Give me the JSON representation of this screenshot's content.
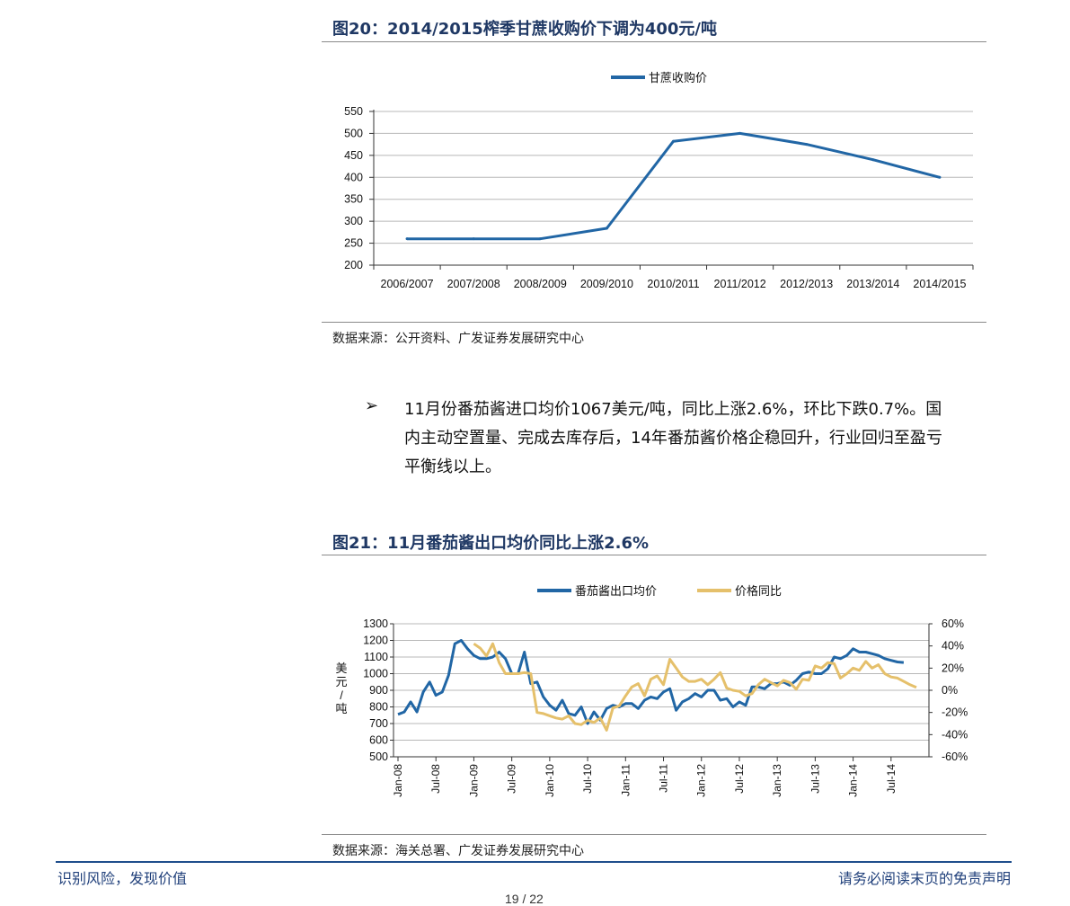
{
  "figure20": {
    "title": "图20：2014/2015榨季甘蔗收购价下调为400元/吨",
    "source": "数据来源：公开资料、广发证券发展研究中心",
    "chart_data": {
      "type": "line",
      "categories": [
        "2006/2007",
        "2007/2008",
        "2008/2009",
        "2009/2010",
        "2010/2011",
        "2011/2012",
        "2012/2013",
        "2013/2014",
        "2014/2015"
      ],
      "series": [
        {
          "name": "甘蔗收购价",
          "values": [
            260,
            260,
            260,
            284,
            482,
            500,
            475,
            440,
            400
          ],
          "color": "#2166a5"
        }
      ],
      "ylim": [
        200,
        550
      ],
      "yticks": [
        "200",
        "250",
        "300",
        "350",
        "400",
        "450",
        "500",
        "550"
      ],
      "legend_position": "top-center",
      "grid": true
    }
  },
  "bullet": {
    "marker": "➢",
    "lines": [
      "11月份番茄酱进口均价1067美元/吨，同比上涨2.6%，环比下跌0.7%。国",
      "内主动空置量、完成去库存后，14年番茄酱价格企稳回升，行业回归至盈亏",
      "平衡线以上。"
    ]
  },
  "figure21": {
    "title": "图21：11月番茄酱出口均价同比上涨2.6%",
    "source": "数据来源：海关总署、广发证券发展研究中心",
    "chart_data": {
      "type": "line",
      "x_labels": [
        "Jan-08",
        "Jul-08",
        "Jan-09",
        "Jul-09",
        "Jan-10",
        "Jul-10",
        "Jan-11",
        "Jul-11",
        "Jan-12",
        "Jul-12",
        "Jan-13",
        "Jul-13",
        "Jan-14",
        "Jul-14"
      ],
      "y_left_label": "美元/吨",
      "y_left_lim": [
        500,
        1300
      ],
      "y_left_ticks": [
        "500",
        "600",
        "700",
        "800",
        "900",
        "1000",
        "1100",
        "1200",
        "1300"
      ],
      "y_right_lim": [
        -0.6,
        0.6
      ],
      "y_right_ticks": [
        "-60%",
        "-40%",
        "-20%",
        "0%",
        "20%",
        "40%",
        "60%"
      ],
      "legend_position": "top-center",
      "grid": true,
      "series": [
        {
          "name": "番茄酱出口均价",
          "axis": "left",
          "color": "#2166a5",
          "start": "Jan-08",
          "values": [
            755,
            770,
            830,
            770,
            890,
            950,
            870,
            890,
            990,
            1180,
            1200,
            1150,
            1110,
            1090,
            1090,
            1100,
            1130,
            1090,
            1000,
            1000,
            1130,
            940,
            950,
            860,
            810,
            780,
            840,
            760,
            750,
            800,
            700,
            770,
            720,
            790,
            810,
            800,
            820,
            820,
            790,
            840,
            860,
            850,
            890,
            910,
            780,
            830,
            850,
            880,
            860,
            900,
            900,
            840,
            850,
            800,
            830,
            810,
            920,
            920,
            910,
            940,
            940,
            950,
            930,
            960,
            1000,
            1010,
            1000,
            1000,
            1030,
            1100,
            1090,
            1110,
            1150,
            1130,
            1130,
            1120,
            1110,
            1090,
            1080,
            1070,
            1067
          ]
        },
        {
          "name": "价格同比",
          "axis": "right",
          "color": "#e5c06b",
          "start": "Jan-09",
          "values": [
            0.42,
            0.38,
            0.31,
            0.42,
            0.25,
            0.15,
            0.15,
            0.15,
            0.16,
            0.15,
            -0.2,
            -0.21,
            -0.23,
            -0.25,
            -0.26,
            -0.23,
            -0.3,
            -0.31,
            -0.27,
            -0.29,
            -0.25,
            -0.36,
            -0.16,
            -0.14,
            -0.05,
            0.03,
            0.06,
            -0.05,
            0.1,
            0.13,
            0.05,
            0.28,
            0.2,
            0.12,
            0.08,
            0.08,
            0.1,
            0.05,
            0.1,
            0.16,
            0.02,
            0.0,
            -0.01,
            -0.05,
            -0.03,
            0.05,
            0.1,
            0.07,
            0.04,
            0.09,
            0.07,
            0.01,
            0.1,
            0.09,
            0.22,
            0.2,
            0.25,
            0.24,
            0.11,
            0.15,
            0.2,
            0.18,
            0.26,
            0.2,
            0.23,
            0.15,
            0.12,
            0.11,
            0.08,
            0.05,
            0.026
          ]
        }
      ]
    }
  },
  "footer": {
    "left": "识别风险，发现价值",
    "right": "请务必阅读末页的免责声明",
    "page": "19 / 22"
  }
}
